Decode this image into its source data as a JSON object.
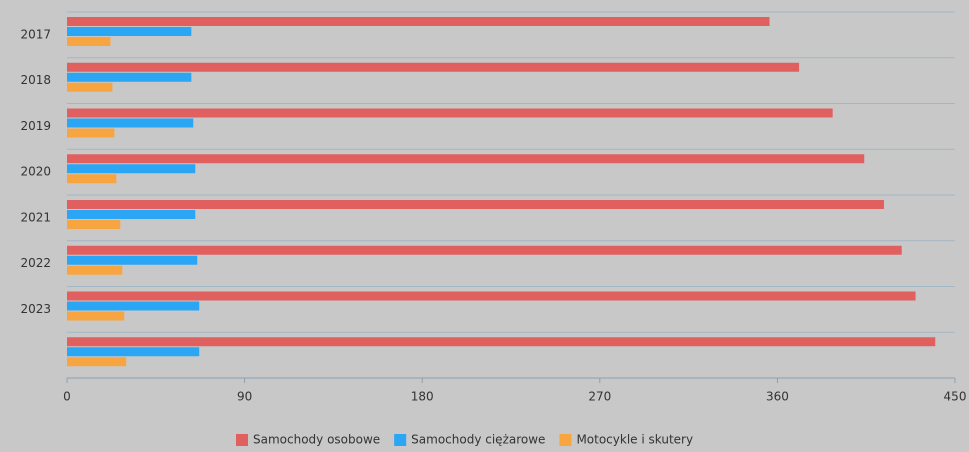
{
  "chart_data": {
    "type": "hbar",
    "categories": [
      "2017",
      "2018",
      "2019",
      "2020",
      "2021",
      "2022",
      "2023",
      null
    ],
    "series": [
      {
        "name": "Samochody osobowe",
        "color": "#e06060",
        "values": [
          356,
          371,
          388,
          404,
          414,
          423,
          430,
          440
        ]
      },
      {
        "name": "Samochody ciężarowe",
        "color": "#2aa6f5",
        "values": [
          63,
          63,
          64,
          65,
          65,
          66,
          67,
          67
        ]
      },
      {
        "name": "Motocykle i skutery",
        "color": "#f7a540",
        "values": [
          22,
          23,
          24,
          25,
          27,
          28,
          29,
          30
        ]
      }
    ],
    "xlim": [
      0,
      450
    ],
    "xticks": [
      0,
      90,
      180,
      270,
      360,
      450
    ],
    "grid": true,
    "legend": "bottom"
  }
}
